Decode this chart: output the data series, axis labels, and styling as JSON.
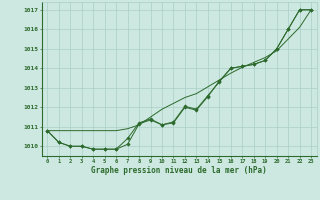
{
  "x": [
    0,
    1,
    2,
    3,
    4,
    5,
    6,
    7,
    8,
    9,
    10,
    11,
    12,
    13,
    14,
    15,
    16,
    17,
    18,
    19,
    20,
    21,
    22,
    23
  ],
  "y_wiggly1": [
    1010.8,
    1010.2,
    1010.0,
    1010.0,
    1009.85,
    1009.85,
    1009.85,
    1010.1,
    1011.15,
    1011.35,
    1011.1,
    1011.2,
    1012.0,
    1011.85,
    1012.55,
    1013.35,
    1014.0,
    1014.1,
    1014.2,
    1014.4,
    1015.0,
    1016.0,
    1017.0,
    1017.0
  ],
  "y_wiggly2": [
    1010.8,
    1010.2,
    1010.0,
    1010.0,
    1009.85,
    1009.85,
    1009.85,
    1010.4,
    1011.2,
    1011.4,
    1011.1,
    1011.25,
    1012.05,
    1011.9,
    1012.6,
    1013.3,
    1014.0,
    1014.1,
    1014.2,
    1014.4,
    1015.0,
    1016.0,
    1017.0,
    1017.0
  ],
  "y_straight": [
    1010.8,
    1010.8,
    1010.8,
    1010.8,
    1010.8,
    1010.8,
    1010.8,
    1010.9,
    1011.1,
    1011.5,
    1011.9,
    1012.2,
    1012.5,
    1012.7,
    1013.05,
    1013.4,
    1013.75,
    1014.05,
    1014.3,
    1014.55,
    1014.9,
    1015.5,
    1016.1,
    1017.0
  ],
  "background_color": "#cce8e0",
  "grid_color": "#aacfc7",
  "line_color": "#2d6a2d",
  "text_color": "#2d6a2d",
  "ylabel_ticks": [
    1010,
    1011,
    1012,
    1013,
    1014,
    1015,
    1016,
    1017
  ],
  "xlabel_label": "Graphe pression niveau de la mer (hPa)",
  "ylim": [
    1009.5,
    1017.4
  ],
  "xlim": [
    -0.5,
    23.5
  ]
}
